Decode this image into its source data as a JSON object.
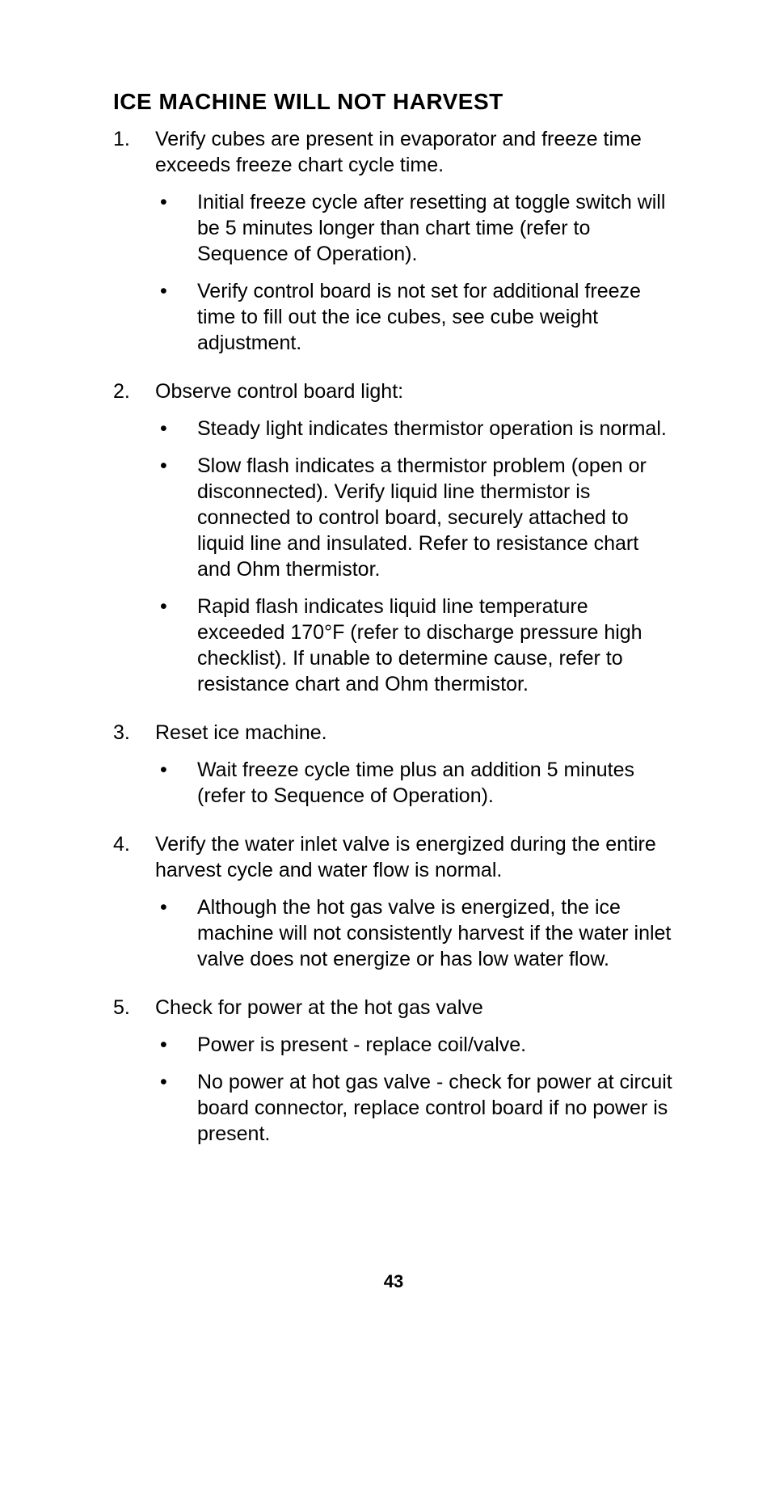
{
  "title": "ICE MACHINE WILL NOT HARVEST",
  "items": [
    {
      "num": "1.",
      "text": "Verify cubes are present in evaporator and freeze time exceeds freeze chart cycle time.",
      "subs": [
        "Initial freeze cycle after resetting at toggle switch will be 5 minutes longer than chart time (refer to Sequence of Operation).",
        " Verify control board is not set for additional freeze time to fill out the ice cubes, see cube weight adjustment."
      ]
    },
    {
      "num": "2.",
      "text": "Observe control board light:",
      "subs": [
        "Steady light indicates thermistor operation is normal.",
        "Slow flash indicates a thermistor problem (open or disconnected). Verify liquid line thermistor is connected to control board, securely attached to liquid line and insulated. Refer to resistance chart and Ohm thermistor.",
        "Rapid flash indicates liquid line temperature exceeded 170°F (refer to discharge pressure high checklist). If unable to determine cause, refer to resistance chart and Ohm thermistor."
      ]
    },
    {
      "num": "3.",
      "text": "Reset ice machine.",
      "subs": [
        "Wait freeze cycle time plus an addition 5 minutes (refer to Sequence of Operation)."
      ]
    },
    {
      "num": "4.",
      "text": "Verify the water inlet valve is energized during the entire harvest cycle and water flow is normal.",
      "subs": [
        "Although the hot gas valve is energized, the ice machine will not consistently harvest if the water inlet valve does not energize or has low water flow."
      ]
    },
    {
      "num": "5.",
      "text": "Check for power at the hot gas valve",
      "subs": [
        "Power is present - replace coil/valve.",
        "No power at hot gas valve - check for power at circuit board connector, replace control board if no power is present."
      ]
    }
  ],
  "page_number": "43",
  "bullet_char": "•"
}
